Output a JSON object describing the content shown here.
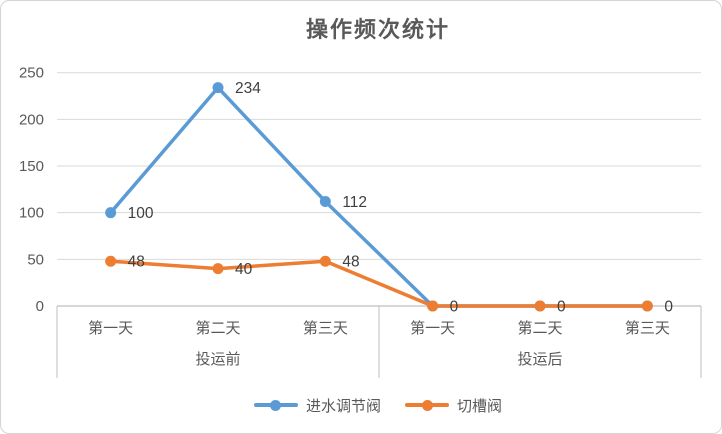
{
  "chart_data": {
    "type": "line",
    "title": "操作频次统计",
    "categories": [
      "第一天",
      "第二天",
      "第三天",
      "第一天",
      "第二天",
      "第三天"
    ],
    "category_groups": [
      {
        "label": "投运前",
        "from": 0,
        "to": 2
      },
      {
        "label": "投运后",
        "from": 3,
        "to": 5
      }
    ],
    "series": [
      {
        "name": "进水调节阀",
        "color": "#5b9bd5",
        "values": [
          100,
          234,
          112,
          0,
          0,
          0
        ],
        "labels": [
          "100",
          "234",
          "112",
          null,
          null,
          null
        ]
      },
      {
        "name": "切槽阀",
        "color": "#ed7d31",
        "values": [
          48,
          40,
          48,
          0,
          0,
          0
        ],
        "labels": [
          "48",
          "40",
          "48",
          "0",
          "0",
          "0"
        ]
      }
    ],
    "y_ticks": [
      0,
      50,
      100,
      150,
      200,
      250
    ],
    "ylim": [
      0,
      250
    ],
    "grid": true,
    "legend_position": "bottom",
    "marker": "circle",
    "colors": {
      "gridline": "#d9d9d9",
      "axis_line": "#bfbfbf",
      "tick_text": "#595959",
      "category_text": "#595959",
      "group_text": "#595959",
      "data_label_text": "#404040",
      "title_text": "#595959",
      "frame_border": "#d4d4d4",
      "background": "#ffffff"
    }
  }
}
